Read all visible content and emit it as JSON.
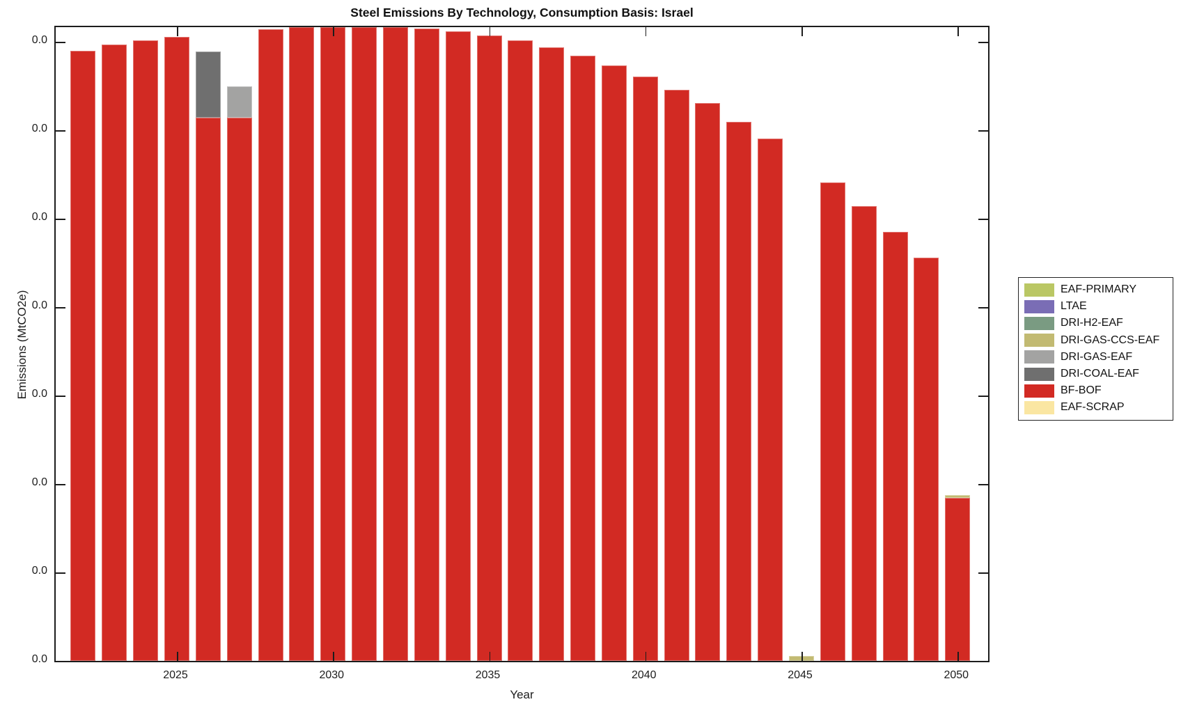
{
  "title": "Steel Emissions By Technology, Consumption Basis: Israel",
  "axes": {
    "xlabel": "Year",
    "ylabel": "Emissions (MtCO2e)",
    "x_tick_labels": [
      "2025",
      "2030",
      "2035",
      "2040",
      "2045",
      "2050"
    ],
    "y_tick_labels": [
      "0.0",
      "0.0",
      "0.0",
      "0.0",
      "0.0",
      "0.0",
      "0.0",
      "0.0"
    ]
  },
  "legend": [
    {
      "label": "EAF-PRIMARY",
      "color": "#bac764"
    },
    {
      "label": "LTAE",
      "color": "#7a6db5"
    },
    {
      "label": "DRI-H2-EAF",
      "color": "#7a9b82"
    },
    {
      "label": "DRI-GAS-CCS-EAF",
      "color": "#c2ba72"
    },
    {
      "label": "DRI-GAS-EAF",
      "color": "#a3a3a2"
    },
    {
      "label": "DRI-COAL-EAF",
      "color": "#6f6f6f"
    },
    {
      "label": "BF-BOF",
      "color": "#d22a23"
    },
    {
      "label": "EAF-SCRAP",
      "color": "#fae6a2"
    }
  ],
  "chart_data": {
    "type": "bar",
    "stacked": true,
    "title": "Steel Emissions By Technology, Consumption Basis: Israel",
    "xlabel": "Year",
    "ylabel": "Emissions (MtCO2e)",
    "x": [
      2022,
      2023,
      2024,
      2025,
      2026,
      2027,
      2028,
      2029,
      2030,
      2031,
      2032,
      2033,
      2034,
      2035,
      2036,
      2037,
      2038,
      2039,
      2040,
      2041,
      2042,
      2043,
      2044,
      2045,
      2046,
      2047,
      2048,
      2049,
      2050
    ],
    "x_ticks": [
      2025,
      2030,
      2035,
      2040,
      2045,
      2050
    ],
    "grid": false,
    "legend_position": "outside-right",
    "value_units": "fraction of y-axis span (all y tick labels display as 0.0)",
    "ylim_fraction": [
      0,
      1
    ],
    "stack_order_bottom_to_top": [
      "EAF-SCRAP",
      "BF-BOF",
      "DRI-COAL-EAF",
      "DRI-GAS-EAF",
      "DRI-GAS-CCS-EAF",
      "DRI-H2-EAF",
      "LTAE",
      "EAF-PRIMARY"
    ],
    "series": [
      {
        "name": "EAF-SCRAP",
        "values": [
          0,
          0,
          0,
          0,
          0,
          0,
          0,
          0,
          0,
          0,
          0,
          0,
          0,
          0,
          0,
          0,
          0,
          0,
          0,
          0,
          0,
          0,
          0,
          0,
          0,
          0,
          0,
          0,
          0
        ]
      },
      {
        "name": "BF-BOF",
        "values": [
          0.963,
          0.972,
          0.979,
          0.985,
          0.857,
          0.857,
          0.997,
          1.0,
          1.0,
          1.0,
          1.0,
          0.998,
          0.993,
          0.987,
          0.979,
          0.968,
          0.955,
          0.94,
          0.922,
          0.901,
          0.88,
          0.851,
          0.824,
          0,
          0.755,
          0.718,
          0.677,
          0.636,
          0.257
        ]
      },
      {
        "name": "DRI-COAL-EAF",
        "values": [
          0,
          0,
          0,
          0,
          0.105,
          0,
          0,
          0,
          0,
          0,
          0,
          0,
          0,
          0,
          0,
          0,
          0,
          0,
          0,
          0,
          0,
          0,
          0,
          0,
          0,
          0,
          0,
          0,
          0
        ]
      },
      {
        "name": "DRI-GAS-EAF",
        "values": [
          0,
          0,
          0,
          0,
          0,
          0.05,
          0,
          0,
          0,
          0,
          0,
          0,
          0,
          0,
          0,
          0,
          0,
          0,
          0,
          0,
          0,
          0,
          0,
          0,
          0,
          0,
          0,
          0,
          0
        ]
      },
      {
        "name": "DRI-GAS-CCS-EAF",
        "values": [
          0,
          0,
          0,
          0,
          0,
          0,
          0,
          0,
          0,
          0,
          0,
          0,
          0,
          0,
          0,
          0,
          0,
          0,
          0,
          0,
          0,
          0,
          0,
          0.008,
          0,
          0,
          0,
          0,
          0.005
        ]
      },
      {
        "name": "DRI-H2-EAF",
        "values": [
          0,
          0,
          0,
          0,
          0,
          0,
          0,
          0,
          0,
          0,
          0,
          0,
          0,
          0,
          0,
          0,
          0,
          0,
          0,
          0,
          0,
          0,
          0,
          0,
          0,
          0,
          0,
          0,
          0
        ]
      },
      {
        "name": "LTAE",
        "values": [
          0,
          0,
          0,
          0,
          0,
          0,
          0,
          0,
          0,
          0,
          0,
          0,
          0,
          0,
          0,
          0,
          0,
          0,
          0,
          0,
          0,
          0,
          0,
          0,
          0,
          0,
          0,
          0,
          0
        ]
      },
      {
        "name": "EAF-PRIMARY",
        "values": [
          0,
          0,
          0,
          0,
          0,
          0,
          0,
          0,
          0,
          0,
          0,
          0,
          0,
          0,
          0,
          0,
          0,
          0,
          0,
          0,
          0,
          0,
          0,
          0,
          0,
          0,
          0,
          0,
          0
        ]
      }
    ]
  }
}
